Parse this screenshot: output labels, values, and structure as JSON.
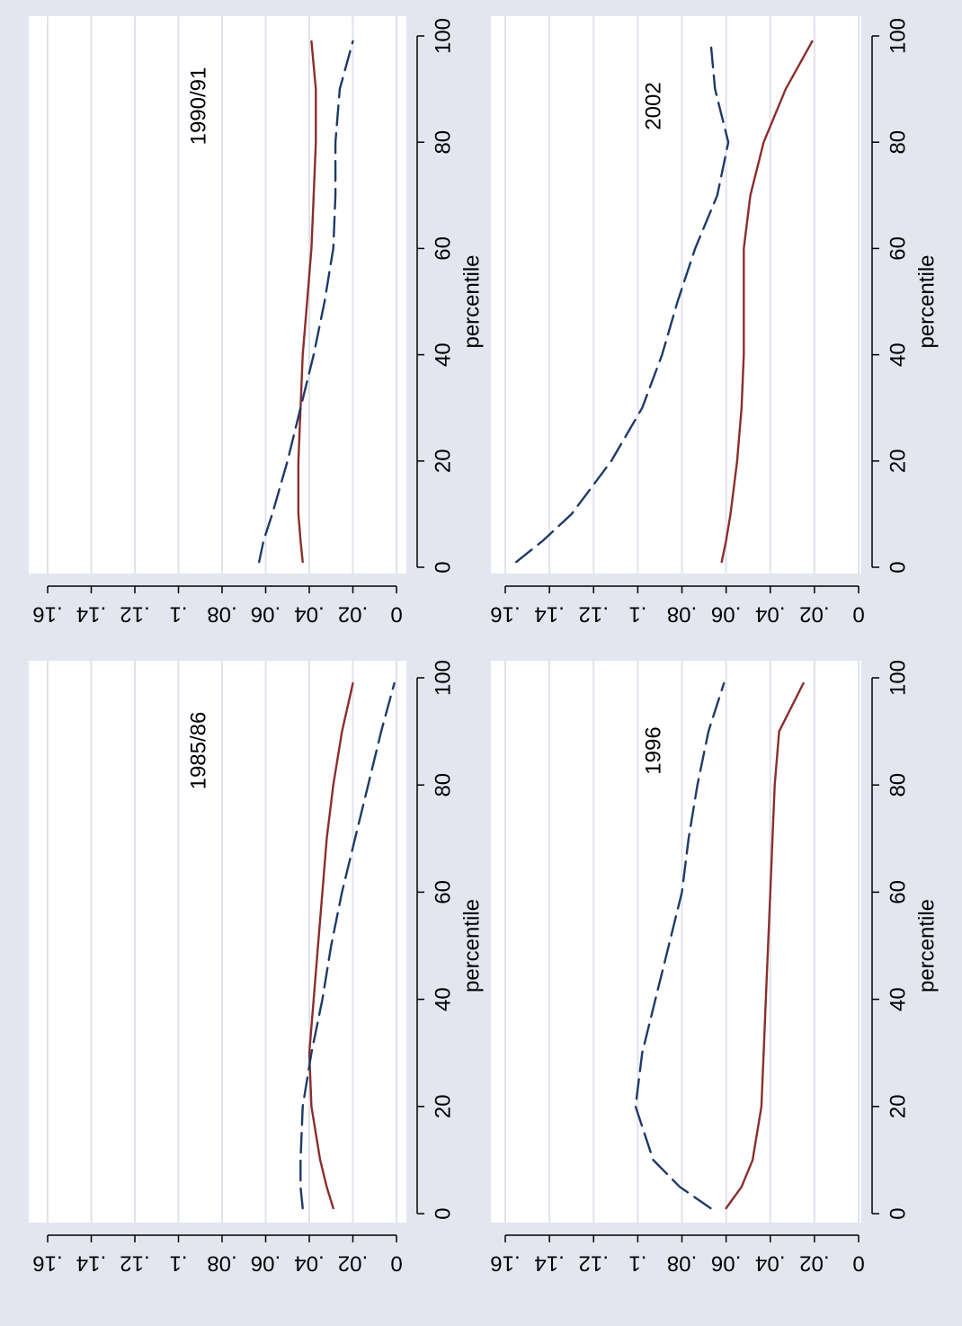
{
  "figure": {
    "background": "#e3e6ef",
    "plot_background": "#ffffff",
    "gridline_color": "#dfe3ea",
    "orientation": "rotated 90 degrees clockwise"
  },
  "chart_data": [
    {
      "type": "line",
      "title": "1985/86",
      "xlabel": "percentile",
      "ylabel": "",
      "xlim": [
        0,
        100
      ],
      "ylim": [
        0,
        0.16
      ],
      "x_ticks": [
        "0",
        "20",
        "40",
        "60",
        "80",
        "100"
      ],
      "y_ticks": [
        "0",
        ".02",
        ".04",
        ".06",
        ".08",
        ".1",
        ".12",
        ".14",
        ".16"
      ],
      "grid": true,
      "series": [
        {
          "style": "solid",
          "color": "#8c2d2d",
          "x": [
            1,
            5,
            10,
            20,
            30,
            40,
            50,
            60,
            70,
            80,
            90,
            99
          ],
          "y": [
            0.029,
            0.032,
            0.035,
            0.039,
            0.04,
            0.038,
            0.036,
            0.034,
            0.032,
            0.029,
            0.025,
            0.02
          ]
        },
        {
          "style": "dashed",
          "color": "#1f3a68",
          "x": [
            1,
            5,
            10,
            20,
            30,
            40,
            50,
            60,
            70,
            80,
            90,
            99
          ],
          "y": [
            0.043,
            0.044,
            0.044,
            0.043,
            0.039,
            0.034,
            0.03,
            0.025,
            0.019,
            0.013,
            0.007,
            0.001
          ]
        }
      ]
    },
    {
      "type": "line",
      "title": "1990/91",
      "xlabel": "percentile",
      "ylabel": "",
      "xlim": [
        0,
        100
      ],
      "ylim": [
        0,
        0.16
      ],
      "x_ticks": [
        "0",
        "20",
        "40",
        "60",
        "80",
        "100"
      ],
      "y_ticks": [
        "0",
        ".02",
        ".04",
        ".06",
        ".08",
        ".1",
        ".12",
        ".14",
        ".16"
      ],
      "grid": true,
      "series": [
        {
          "style": "solid",
          "color": "#8c2d2d",
          "x": [
            1,
            5,
            10,
            20,
            30,
            40,
            50,
            60,
            70,
            80,
            90,
            99
          ],
          "y": [
            0.043,
            0.044,
            0.045,
            0.045,
            0.044,
            0.043,
            0.041,
            0.039,
            0.038,
            0.037,
            0.037,
            0.039
          ]
        },
        {
          "style": "dashed",
          "color": "#1f3a68",
          "x": [
            1,
            5,
            10,
            20,
            30,
            40,
            50,
            60,
            70,
            80,
            90,
            99
          ],
          "y": [
            0.063,
            0.061,
            0.057,
            0.05,
            0.044,
            0.038,
            0.033,
            0.029,
            0.028,
            0.028,
            0.026,
            0.02
          ]
        }
      ]
    },
    {
      "type": "line",
      "title": "1996",
      "xlabel": "percentile",
      "ylabel": "",
      "xlim": [
        0,
        100
      ],
      "ylim": [
        0,
        0.16
      ],
      "x_ticks": [
        "0",
        "20",
        "40",
        "60",
        "80",
        "100"
      ],
      "y_ticks": [
        "0",
        ".02",
        ".04",
        ".06",
        ".08",
        ".1",
        ".12",
        ".14",
        ".16"
      ],
      "grid": true,
      "series": [
        {
          "style": "solid",
          "color": "#8c2d2d",
          "x": [
            1,
            5,
            10,
            20,
            30,
            40,
            50,
            60,
            70,
            80,
            90,
            99
          ],
          "y": [
            0.06,
            0.053,
            0.048,
            0.044,
            0.043,
            0.042,
            0.041,
            0.04,
            0.039,
            0.038,
            0.036,
            0.025
          ]
        },
        {
          "style": "dashed",
          "color": "#1f3a68",
          "x": [
            1,
            5,
            10,
            20,
            30,
            40,
            50,
            60,
            70,
            80,
            90,
            99
          ],
          "y": [
            0.067,
            0.081,
            0.093,
            0.101,
            0.098,
            0.092,
            0.086,
            0.08,
            0.077,
            0.073,
            0.068,
            0.061
          ]
        }
      ]
    },
    {
      "type": "line",
      "title": "2002",
      "xlabel": "percentile",
      "ylabel": "",
      "xlim": [
        0,
        100
      ],
      "ylim": [
        0,
        0.16
      ],
      "x_ticks": [
        "0",
        "20",
        "40",
        "60",
        "80",
        "100"
      ],
      "y_ticks": [
        "0",
        ".02",
        ".04",
        ".06",
        ".08",
        ".1",
        ".12",
        ".14",
        ".16"
      ],
      "grid": true,
      "series": [
        {
          "style": "solid",
          "color": "#8c2d2d",
          "x": [
            1,
            5,
            10,
            20,
            30,
            40,
            50,
            60,
            70,
            80,
            90,
            99
          ],
          "y": [
            0.062,
            0.06,
            0.058,
            0.055,
            0.053,
            0.052,
            0.052,
            0.052,
            0.049,
            0.043,
            0.033,
            0.021
          ]
        },
        {
          "style": "dashed",
          "color": "#1f3a68",
          "x": [
            1,
            5,
            10,
            20,
            30,
            40,
            50,
            60,
            70,
            80,
            90,
            99
          ],
          "y": [
            0.155,
            0.143,
            0.13,
            0.112,
            0.098,
            0.089,
            0.082,
            0.074,
            0.064,
            0.059,
            0.065,
            0.067
          ]
        }
      ]
    }
  ]
}
